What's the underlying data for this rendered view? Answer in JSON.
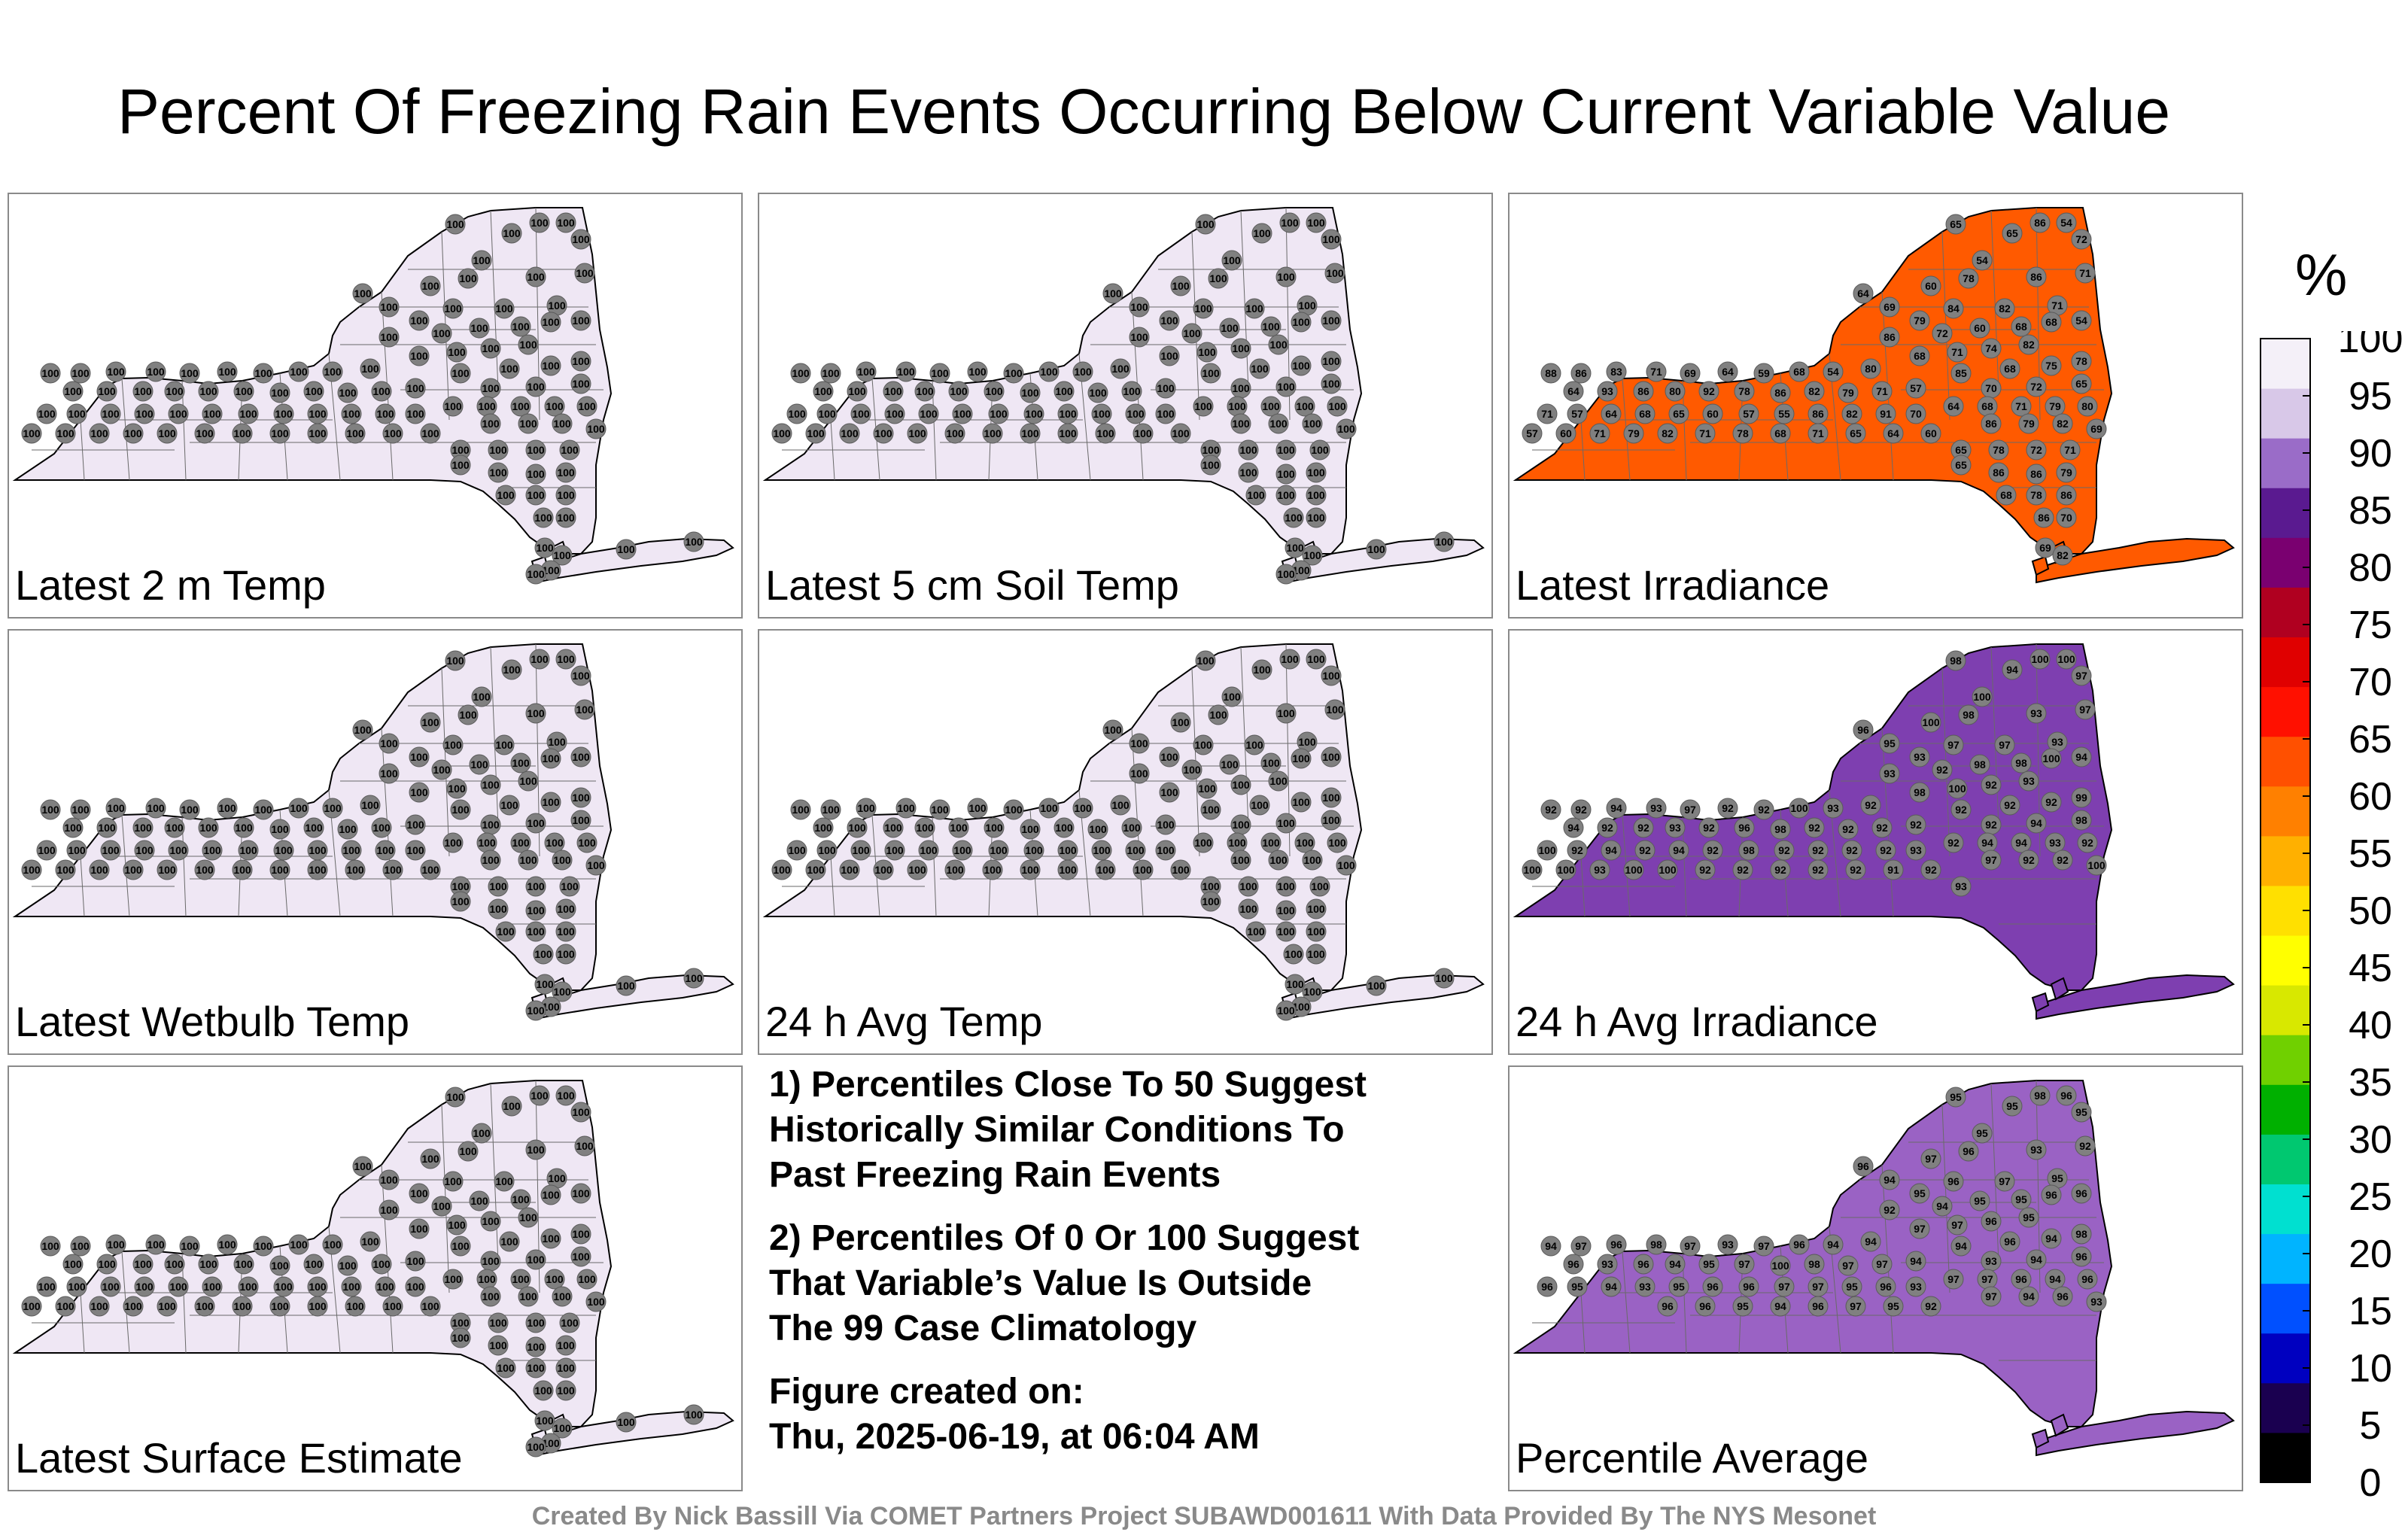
{
  "title": "Percent Of Freezing Rain Events Occurring Below Current Variable Value",
  "panels": [
    {
      "label": "Latest 2 m Temp",
      "fill": "#efe7f4",
      "default_value": 100,
      "values": []
    },
    {
      "label": "Latest 5 cm Soil Temp",
      "fill": "#efe7f4",
      "default_value": 100,
      "values": []
    },
    {
      "label": "Latest Irradiance",
      "fill": "#ff5a00",
      "default_value": null,
      "values": [
        65,
        86,
        54,
        72,
        65,
        54,
        71,
        86,
        78,
        60,
        64,
        69,
        71,
        82,
        84,
        79,
        54,
        68,
        68,
        60,
        72,
        86,
        82,
        74,
        71,
        68,
        78,
        75,
        68,
        80,
        54,
        68,
        59,
        64,
        69,
        71,
        83,
        86,
        88,
        85,
        70,
        72,
        65,
        57,
        71,
        79,
        82,
        86,
        78,
        92,
        80,
        86,
        93,
        64,
        64,
        68,
        71,
        79,
        80,
        70,
        91,
        82,
        86,
        55,
        57,
        60,
        65,
        68,
        64,
        57,
        71,
        86,
        79,
        82,
        69,
        60,
        64,
        65,
        71,
        68,
        78,
        71,
        82,
        79,
        71,
        60,
        57,
        65,
        78,
        72,
        71,
        65,
        86,
        86,
        79,
        68,
        78,
        86,
        86,
        70,
        69,
        82
      ]
    },
    {
      "label": "Latest Wetbulb Temp",
      "fill": "#efe7f4",
      "default_value": 100,
      "values": []
    },
    {
      "label": "24 h Avg Temp",
      "fill": "#efe7f4",
      "default_value": 100,
      "values": []
    },
    {
      "label": "24 h Avg Irradiance",
      "fill": "#7e3fb0",
      "default_value": null,
      "values": [
        98,
        100,
        100,
        97,
        94,
        100,
        97,
        93,
        98,
        100,
        96,
        95,
        93,
        97,
        97,
        93,
        94,
        100,
        98,
        98,
        92,
        93,
        93,
        92,
        100,
        98,
        99,
        92,
        92,
        92,
        93,
        100,
        92,
        92,
        97,
        93,
        94,
        92,
        92,
        92,
        92,
        94,
        98,
        92,
        92,
        92,
        92,
        98,
        96,
        92,
        93,
        92,
        92,
        94,
        92,
        94,
        94,
        93,
        92,
        93,
        92,
        92,
        92,
        92,
        98,
        92,
        94,
        92,
        94,
        92,
        100,
        97,
        92,
        92,
        100,
        92,
        91,
        92,
        92,
        92,
        92,
        92,
        100,
        100,
        93,
        100,
        100,
        93
      ]
    },
    {
      "label": "Latest Surface Estimate",
      "fill": "#efe7f4",
      "default_value": 100,
      "values": []
    },
    {
      "label": "Percentile Average",
      "fill": "#9a62c4",
      "default_value": null,
      "values": [
        95,
        98,
        96,
        95,
        95,
        95,
        92,
        93,
        96,
        97,
        96,
        94,
        95,
        97,
        96,
        95,
        96,
        96,
        95,
        95,
        94,
        92,
        95,
        96,
        97,
        97,
        98,
        94,
        96,
        94,
        94,
        96,
        97,
        93,
        97,
        98,
        96,
        97,
        94,
        94,
        93,
        94,
        96,
        94,
        97,
        97,
        98,
        100,
        97,
        95,
        94,
        96,
        93,
        96,
        97,
        97,
        96,
        94,
        96,
        93,
        96,
        95,
        97,
        97,
        96,
        96,
        95,
        93,
        94,
        95,
        96,
        97,
        94,
        96,
        93,
        92,
        95,
        97,
        96,
        94,
        95,
        96,
        96
      ]
    }
  ],
  "notes": [
    [
      "1) Percentiles Close To 50 Suggest",
      "Historically Similar Conditions To",
      "Past Freezing Rain Events"
    ],
    [
      "2) Percentiles Of 0 Or 100 Suggest",
      "That Variable’s Value Is Outside",
      "The 99 Case Climatology"
    ],
    [
      "Figure created on:",
      "Thu, 2025-06-19, at 06:04 AM"
    ]
  ],
  "colorbar": {
    "unit": "%",
    "ticks": [
      "0",
      "5",
      "10",
      "15",
      "20",
      "25",
      "30",
      "35",
      "40",
      "45",
      "50",
      "55",
      "60",
      "65",
      "70",
      "75",
      "80",
      "85",
      "90",
      "95",
      "100"
    ],
    "colors": [
      "#000000",
      "#1a0050",
      "#0000c0",
      "#0050ff",
      "#00b4ff",
      "#00e0d0",
      "#00c870",
      "#00b000",
      "#70d000",
      "#d8e800",
      "#ffff00",
      "#ffe000",
      "#ffb000",
      "#ff8000",
      "#ff5000",
      "#ff1000",
      "#e00000",
      "#b00020",
      "#7a0070",
      "#5a1a90",
      "#9a6cc8",
      "#d8c8e8",
      "#f4f0f8"
    ]
  },
  "footer": "Created By Nick Bassill Via COMET Partners Project SUBAWD001611 With Data Provided By The NYS Mesonet"
}
